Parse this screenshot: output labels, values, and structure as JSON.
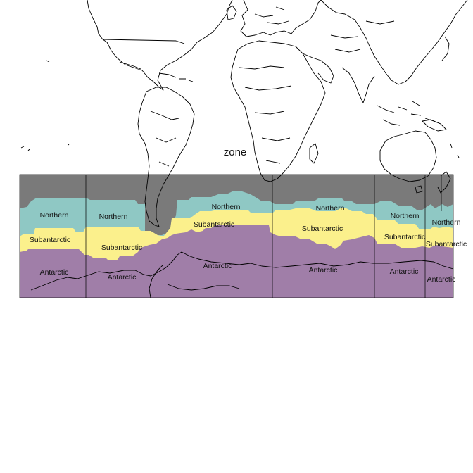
{
  "title": "zone",
  "colors": {
    "outside": "#7a7a7a",
    "Northern": "#8fc8c4",
    "Subantarctic": "#fbf08c",
    "Antarctic": "#a07ea8",
    "coastline": "#000000",
    "background": "#ffffff"
  },
  "zones": [
    "Northern",
    "Subantarctic",
    "Antarctic"
  ],
  "labels": [
    {
      "zone": "Northern",
      "text": "Northern"
    },
    {
      "zone": "Northern",
      "text": "Northern"
    },
    {
      "zone": "Northern",
      "text": "Northern"
    },
    {
      "zone": "Northern",
      "text": "Northern"
    },
    {
      "zone": "Northern",
      "text": "Northern"
    },
    {
      "zone": "Northern",
      "text": "Northern"
    },
    {
      "zone": "Subantarctic",
      "text": "Subantarctic"
    },
    {
      "zone": "Subantarctic",
      "text": "Subantarctic"
    },
    {
      "zone": "Subantarctic",
      "text": "Subantarctic"
    },
    {
      "zone": "Subantarctic",
      "text": "Subantarctic"
    },
    {
      "zone": "Subantarctic",
      "text": "Subantarctic"
    },
    {
      "zone": "Subantarctic",
      "text": "Subantarctic"
    },
    {
      "zone": "Antarctic",
      "text": "Antarctic"
    },
    {
      "zone": "Antarctic",
      "text": "Antarctic"
    },
    {
      "zone": "Antarctic",
      "text": "Antarctic"
    },
    {
      "zone": "Antarctic",
      "text": "Antarctic"
    },
    {
      "zone": "Antarctic",
      "text": "Antarctic"
    },
    {
      "zone": "Antarctic",
      "text": "Antarctic"
    }
  ]
}
